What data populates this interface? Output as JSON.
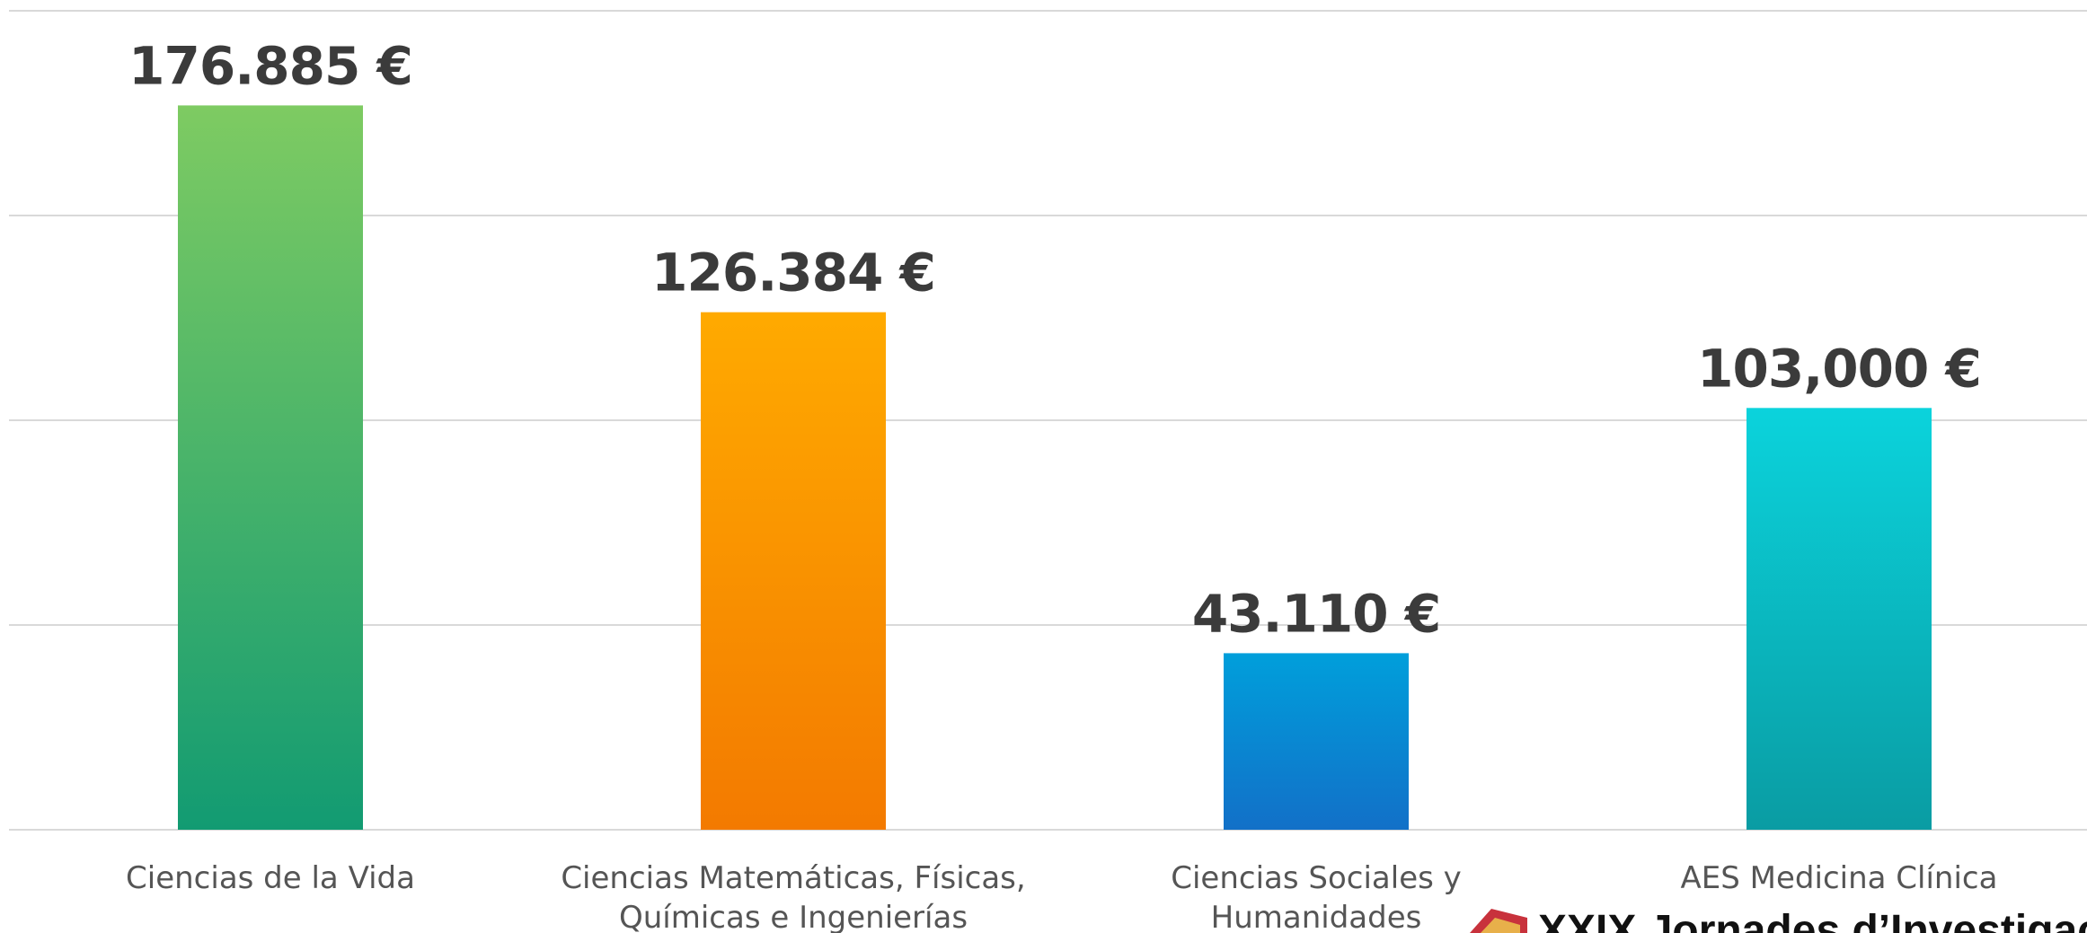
{
  "chart_data": {
    "type": "bar",
    "categories": [
      "Ciencias de la Vida",
      "Ciencias Matemáticas, Físicas, Químicas e Ingenierías",
      "Ciencias Sociales y Humanidades",
      "AES Medicina Clínica"
    ],
    "values": [
      176885,
      126384,
      43110,
      103000
    ],
    "value_labels": [
      "176.885 €",
      "126.384 €",
      "43.110 €",
      "103,000 €"
    ],
    "gradients": [
      [
        "#7ecb62",
        "#129b72"
      ],
      [
        "#ffaa00",
        "#f37a00"
      ],
      [
        "#009fdb",
        "#1270c8"
      ],
      [
        "#0bd3dc",
        "#0a9ca3"
      ]
    ],
    "ylim": [
      0,
      200000
    ],
    "yticks": [
      0,
      50000,
      100000,
      150000,
      200000
    ],
    "grid": true
  },
  "footer": {
    "text": "XXIX Jornades d’Investigació"
  }
}
